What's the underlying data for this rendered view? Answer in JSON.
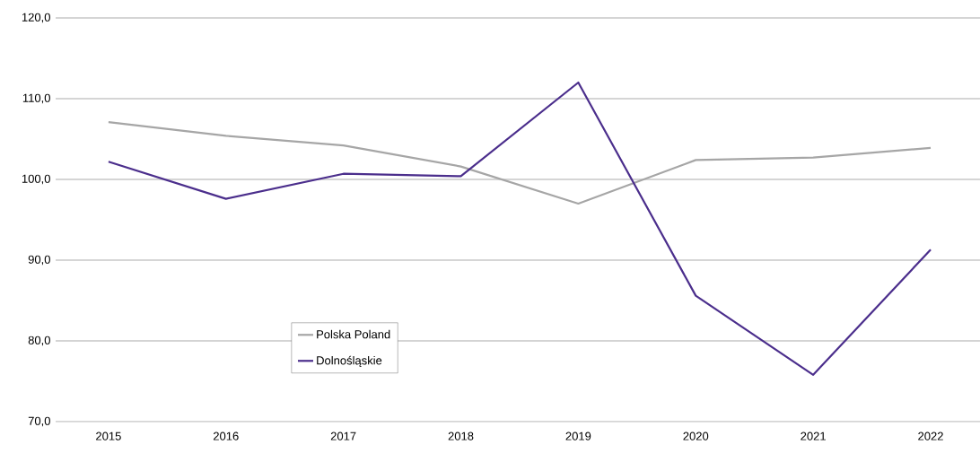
{
  "chart_data": {
    "type": "line",
    "categories": [
      "2015",
      "2016",
      "2017",
      "2018",
      "2019",
      "2020",
      "2021",
      "2022"
    ],
    "series": [
      {
        "name": "Polska Poland",
        "color": "#a6a6a6",
        "values": [
          107.1,
          105.4,
          104.2,
          101.6,
          97.0,
          102.4,
          102.7,
          103.9
        ]
      },
      {
        "name": "Dolnośląskie",
        "color": "#4b2e8c",
        "values": [
          102.2,
          97.6,
          100.7,
          100.4,
          112.0,
          85.6,
          75.8,
          91.3
        ]
      }
    ],
    "ylim": [
      70,
      120
    ],
    "yticks": [
      {
        "value": 70,
        "label": "70,0"
      },
      {
        "value": 80,
        "label": "80,0"
      },
      {
        "value": 90,
        "label": "90,0"
      },
      {
        "value": 100,
        "label": "100,0"
      },
      {
        "value": 110,
        "label": "110,0"
      },
      {
        "value": 120,
        "label": "120,0"
      }
    ],
    "grid": "y",
    "legend": "left",
    "marker": "none",
    "line_style": "solid"
  }
}
